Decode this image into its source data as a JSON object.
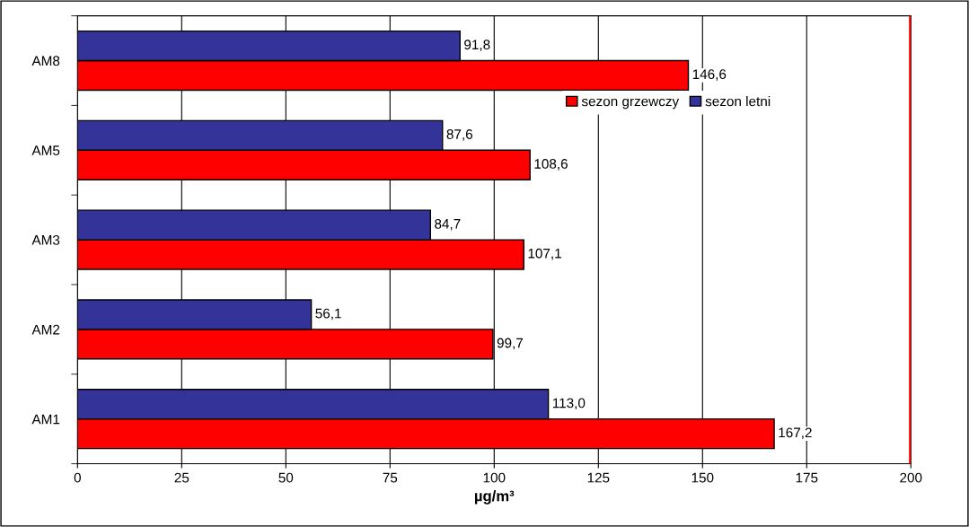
{
  "chart_data": {
    "type": "bar",
    "orientation": "horizontal",
    "xlabel": "µg/m³",
    "categories": [
      "AM8",
      "AM5",
      "AM3",
      "AM2",
      "AM1"
    ],
    "series": [
      {
        "name": "sezon grzewczy",
        "color": "#ff0000",
        "values": [
          146.6,
          108.6,
          107.1,
          99.7,
          167.2
        ],
        "value_labels": [
          "146,6",
          "108,6",
          "107,1",
          "99,7",
          "167,2"
        ]
      },
      {
        "name": "sezon letni",
        "color": "#333399",
        "values": [
          91.8,
          87.6,
          84.7,
          56.1,
          113.0
        ],
        "value_labels": [
          "91,8",
          "87,6",
          "84,7",
          "56,1",
          "113,0"
        ]
      }
    ],
    "xlim": [
      0,
      200
    ],
    "xticks": [
      0,
      25,
      50,
      75,
      100,
      125,
      150,
      175,
      200
    ],
    "grid": "x",
    "legend": "top right",
    "ref_lines": [
      {
        "axis": "x",
        "value": 200,
        "color": "#ff0000"
      }
    ]
  }
}
